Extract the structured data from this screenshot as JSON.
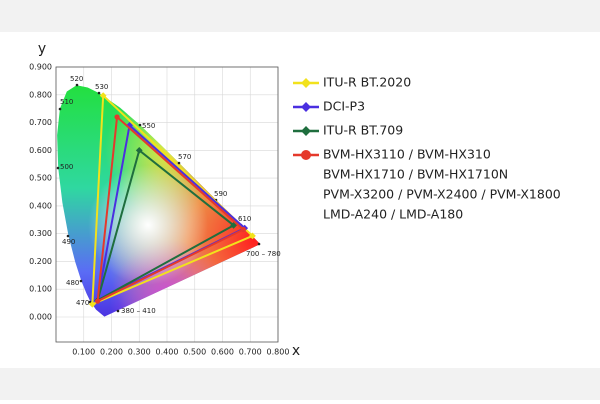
{
  "chart_data": {
    "type": "gamut",
    "x_label": "x",
    "y_label": "y",
    "xlim": [
      0,
      0.8
    ],
    "ylim": [
      -0.09,
      0.9
    ],
    "xticks": [
      {
        "value": 0.1,
        "label": "0.100"
      },
      {
        "value": 0.2,
        "label": "0.200"
      },
      {
        "value": 0.3,
        "label": "0.300"
      },
      {
        "value": 0.4,
        "label": "0.400"
      },
      {
        "value": 0.5,
        "label": "0.500"
      },
      {
        "value": 0.6,
        "label": "0.600"
      },
      {
        "value": 0.7,
        "label": "0.700"
      },
      {
        "value": 0.8,
        "label": "0.800"
      }
    ],
    "yticks": [
      {
        "value": 0,
        "label": "0.000"
      },
      {
        "value": 0.1,
        "label": "0.100"
      },
      {
        "value": 0.2,
        "label": "0.200"
      },
      {
        "value": 0.3,
        "label": "0.300"
      },
      {
        "value": 0.4,
        "label": "0.400"
      },
      {
        "value": 0.5,
        "label": "0.500"
      },
      {
        "value": 0.6,
        "label": "0.600"
      },
      {
        "value": 0.7,
        "label": "0.700"
      },
      {
        "value": 0.8,
        "label": "0.800"
      },
      {
        "value": 0.9,
        "label": "0.900"
      }
    ],
    "grid": true,
    "annotations": [
      "520",
      "530",
      "510",
      "550",
      "500",
      "570",
      "490",
      "590",
      "610",
      "480",
      "470",
      "700 – 780",
      "380 – 410"
    ],
    "series": [
      {
        "name": "ITU-R BT.2020",
        "color": "#f2e21c",
        "marker": "diamond",
        "x": [
          0.708,
          0.17,
          0.131
        ],
        "values": [
          0.292,
          0.797,
          0.046
        ]
      },
      {
        "name": "DCI-P3",
        "color": "#4a2fe0",
        "marker": "diamond",
        "x": [
          0.68,
          0.265,
          0.15
        ],
        "values": [
          0.32,
          0.69,
          0.06
        ]
      },
      {
        "name": "ITU-R BT.709",
        "color": "#1f6e3e",
        "marker": "diamond",
        "x": [
          0.64,
          0.3,
          0.15
        ],
        "values": [
          0.33,
          0.6,
          0.06
        ]
      },
      {
        "name": [
          "BVM-HX3110 / BVM-HX310",
          "BVM-HX1710 / BVM-HX1710N",
          "PVM-X3200 / PVM-X2400 / PVM-X1800",
          "LMD-A240 / LMD-A180"
        ],
        "color": "#e5392b",
        "marker": "circle",
        "x": [
          0.675,
          0.22,
          0.15
        ],
        "values": [
          0.315,
          0.72,
          0.057
        ]
      }
    ]
  }
}
